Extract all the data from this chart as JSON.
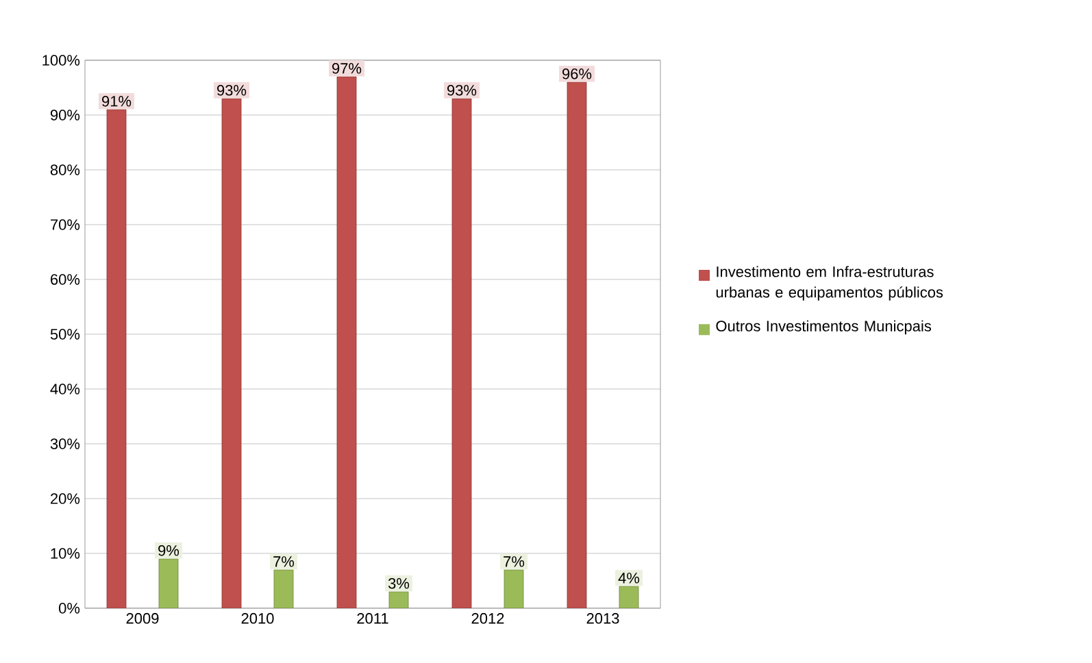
{
  "chart_data": {
    "type": "bar",
    "categories": [
      "2009",
      "2010",
      "2011",
      "2012",
      "2013"
    ],
    "series": [
      {
        "name": "Investimento em Infra-estruturas urbanas  e equipamentos públicos",
        "color": "#c0504d",
        "values": [
          91,
          93,
          97,
          93,
          96
        ],
        "value_labels": [
          "91%",
          "93%",
          "97%",
          "93%",
          "96%"
        ]
      },
      {
        "name": "Outros Investimentos Municpais",
        "color": "#9bbb59",
        "values": [
          9,
          7,
          3,
          7,
          4
        ],
        "value_labels": [
          "9%",
          "7%",
          "3%",
          "7%",
          "4%"
        ]
      }
    ],
    "ylim": [
      0,
      100
    ],
    "yticks": [
      {
        "value": 0,
        "label": "0%"
      },
      {
        "value": 10,
        "label": "10%"
      },
      {
        "value": 20,
        "label": "20%"
      },
      {
        "value": 30,
        "label": "30%"
      },
      {
        "value": 40,
        "label": "40%"
      },
      {
        "value": 50,
        "label": "50%"
      },
      {
        "value": 60,
        "label": "60%"
      },
      {
        "value": 70,
        "label": "70%"
      },
      {
        "value": 80,
        "label": "80%"
      },
      {
        "value": 90,
        "label": "90%"
      },
      {
        "value": 100,
        "label": "100%"
      }
    ],
    "grid": "y",
    "legend": "right"
  }
}
